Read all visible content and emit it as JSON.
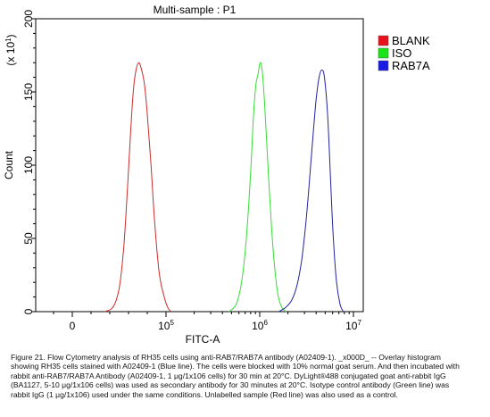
{
  "chart_data": {
    "type": "line",
    "title": "Multi-sample : P1",
    "xlabel": "FITC-A",
    "ylabel": "Count",
    "y_multiplier": "(x 10",
    "y_multiplier_exp": "1",
    "y_multiplier_close": ")",
    "ylim": [
      0,
      200
    ],
    "yticks": [
      0,
      50,
      100,
      150,
      200
    ],
    "x_scale": "biexponential",
    "xticks": [
      {
        "value": 0,
        "base": "0",
        "exp": ""
      },
      {
        "value": 100000,
        "base": "10",
        "exp": "5"
      },
      {
        "value": 1000000,
        "base": "10",
        "exp": "6"
      },
      {
        "value": 10000000,
        "base": "10",
        "exp": "7"
      }
    ],
    "legend_position": "top-right",
    "series": [
      {
        "name": "BLANK",
        "color": "#cc2b2b",
        "swatch": "#e8101a",
        "points": [
          [
            34000,
            0
          ],
          [
            42000,
            2
          ],
          [
            47000,
            8
          ],
          [
            51000,
            20
          ],
          [
            55000,
            45
          ],
          [
            59000,
            85
          ],
          [
            62000,
            120
          ],
          [
            65000,
            150
          ],
          [
            68000,
            165
          ],
          [
            71000,
            170
          ],
          [
            74000,
            165
          ],
          [
            77000,
            155
          ],
          [
            80000,
            135
          ],
          [
            84000,
            100
          ],
          [
            88000,
            60
          ],
          [
            93000,
            25
          ],
          [
            99000,
            8
          ],
          [
            106000,
            2
          ],
          [
            114000,
            0
          ]
        ]
      },
      {
        "name": "ISO",
        "color": "#33dd33",
        "swatch": "#19e619",
        "points": [
          [
            470000,
            0
          ],
          [
            560000,
            5
          ],
          [
            640000,
            20
          ],
          [
            720000,
            50
          ],
          [
            800000,
            95
          ],
          [
            860000,
            135
          ],
          [
            910000,
            155
          ],
          [
            960000,
            162
          ],
          [
            1010000,
            170
          ],
          [
            1060000,
            165
          ],
          [
            1120000,
            145
          ],
          [
            1200000,
            110
          ],
          [
            1300000,
            70
          ],
          [
            1420000,
            35
          ],
          [
            1560000,
            12
          ],
          [
            1720000,
            3
          ],
          [
            1900000,
            0
          ]
        ]
      },
      {
        "name": "RAB7A",
        "color": "#22229e",
        "swatch": "#1a1ae6",
        "points": [
          [
            1600000,
            0
          ],
          [
            1900000,
            3
          ],
          [
            2200000,
            8
          ],
          [
            2500000,
            18
          ],
          [
            2800000,
            35
          ],
          [
            3100000,
            60
          ],
          [
            3400000,
            90
          ],
          [
            3700000,
            120
          ],
          [
            4000000,
            145
          ],
          [
            4300000,
            160
          ],
          [
            4600000,
            165
          ],
          [
            4900000,
            160
          ],
          [
            5300000,
            135
          ],
          [
            5700000,
            90
          ],
          [
            6100000,
            50
          ],
          [
            6600000,
            20
          ],
          [
            7200000,
            5
          ],
          [
            7800000,
            0
          ]
        ]
      }
    ]
  },
  "caption": "Figure 21. Flow Cytometry analysis of RH35 cells using anti-RAB7/RAB7A antibody (A02409-1). _x000D_ -- Overlay histogram showing RH35 cells stained with A02409-1 (Blue line). The cells were blocked with 10% normal goat serum. And then incubated with rabbit anti-RAB7/RAB7A Antibody (A02409-1, 1 μg/1x106 cells) for 30 min at 20°C. DyLight®488 conjugated goat anti-rabbit IgG (BA1127, 5-10 μg/1x106 cells) was used as secondary antibody for 30 minutes at 20°C. Isotype control antibody (Green line) was rabbit IgG (1 μg/1x106) used under the same conditions. Unlabelled sample (Red line) was also used as a control."
}
